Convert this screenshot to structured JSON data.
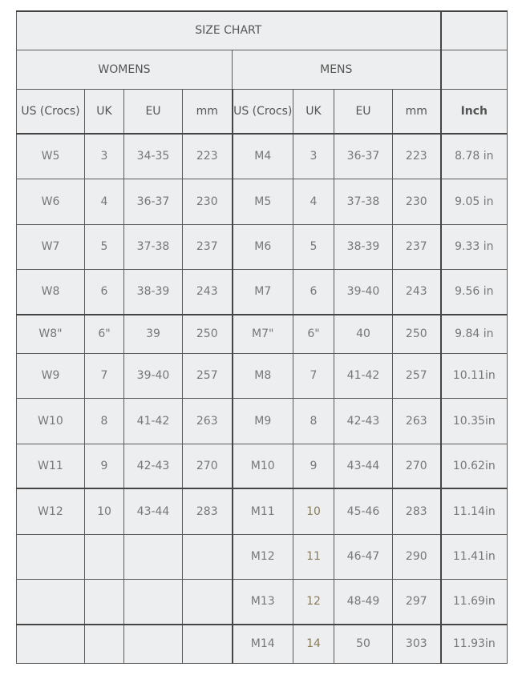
{
  "title": "SIZE CHART",
  "groups": {
    "womens": "WOMENS",
    "mens": "MENS"
  },
  "headers": [
    "US (Crocs)",
    "UK",
    "EU",
    "mm",
    "US (Crocs)",
    "UK",
    "EU",
    "mm",
    "Inch"
  ],
  "rows": [
    [
      "W5",
      "3",
      "34-35",
      "223",
      "M4",
      "3",
      "36-37",
      "223",
      "8.78 in"
    ],
    [
      "W6",
      "4",
      "36-37",
      "230",
      "M5",
      "4",
      "37-38",
      "230",
      "9.05 in"
    ],
    [
      "W7",
      "5",
      "37-38",
      "237",
      "M6",
      "5",
      "38-39",
      "237",
      "9.33 in"
    ],
    [
      "W8",
      "6",
      "38-39",
      "243",
      "M7",
      "6",
      "39-40",
      "243",
      "9.56 in"
    ],
    [
      "W8\"",
      "6\"",
      "39",
      "250",
      "M7\"",
      "6\"",
      "40",
      "250",
      "9.84 in"
    ],
    [
      "W9",
      "7",
      "39-40",
      "257",
      "M8",
      "7",
      "41-42",
      "257",
      "10.11in"
    ],
    [
      "W10",
      "8",
      "41-42",
      "263",
      "M9",
      "8",
      "42-43",
      "263",
      "10.35in"
    ],
    [
      "W11",
      "9",
      "42-43",
      "270",
      "M10",
      "9",
      "43-44",
      "270",
      "10.62in"
    ],
    [
      "W12",
      "10",
      "43-44",
      "283",
      "M11",
      "10",
      "45-46",
      "283",
      "11.14in"
    ],
    [
      "",
      "",
      "",
      "",
      "M12",
      "11",
      "46-47",
      "290",
      "11.41in"
    ],
    [
      "",
      "",
      "",
      "",
      "M13",
      "12",
      "48-49",
      "297",
      "11.69in"
    ],
    [
      "",
      "",
      "",
      "",
      "M14",
      "14",
      "50",
      "303",
      "11.93in"
    ]
  ],
  "colors": {
    "background": "#eceeef",
    "text": "#777777",
    "border": "#5a5a5a"
  }
}
